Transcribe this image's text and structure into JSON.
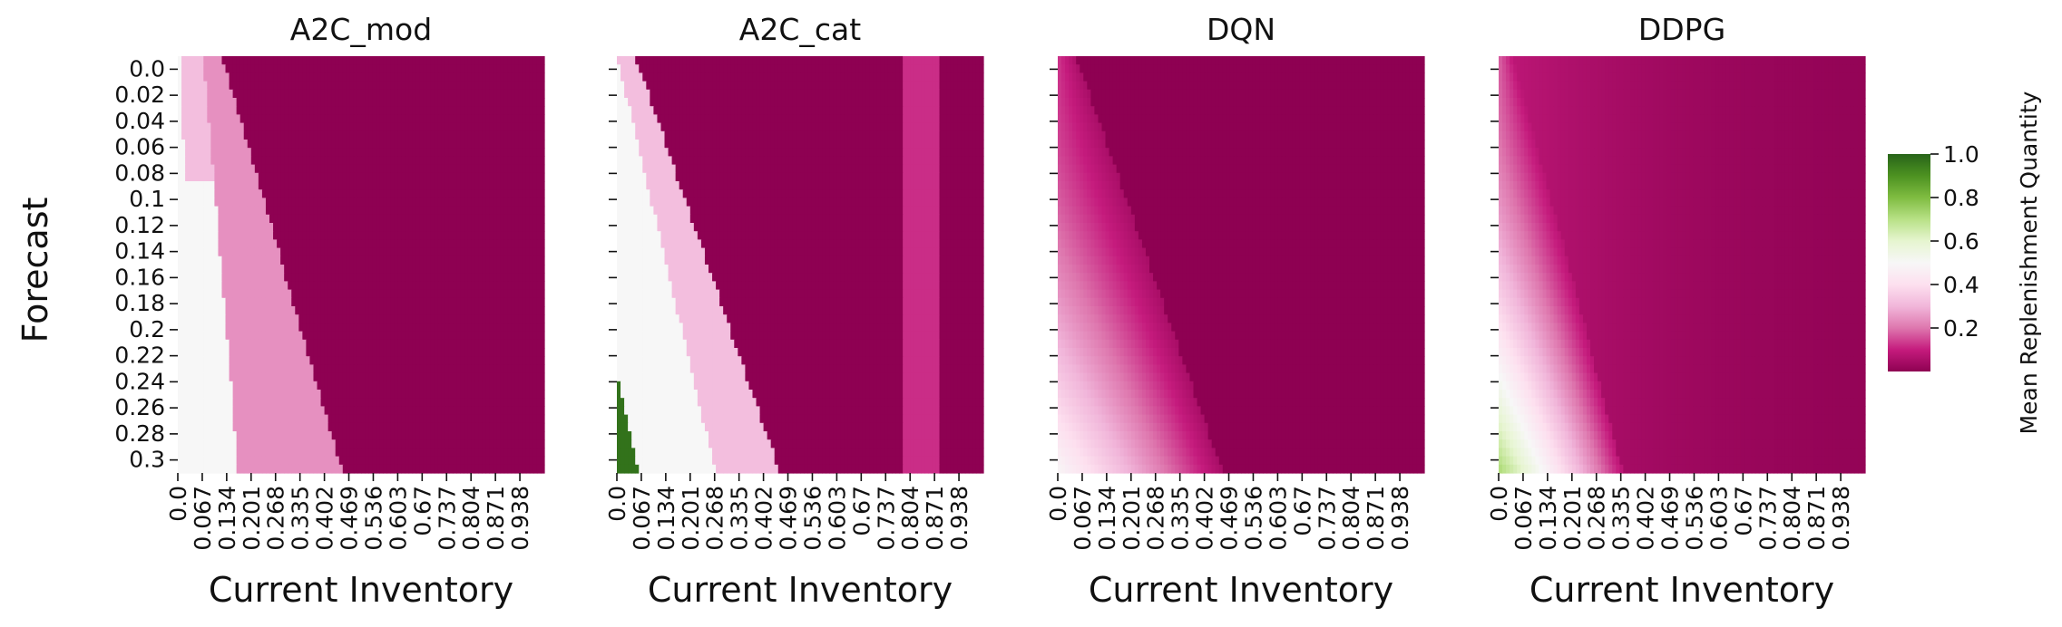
{
  "chart_data": [
    {
      "type": "heatmap",
      "title": "A2C_mod",
      "xlabel": "Current Inventory",
      "ylabel": "Forecast",
      "xticks": [
        "0.0",
        "0.067",
        "0.134",
        "0.201",
        "0.268",
        "0.335",
        "0.402",
        "0.469",
        "0.536",
        "0.603",
        "0.67",
        "0.737",
        "0.804",
        "0.871",
        "0.938"
      ],
      "yticks": [
        "0.0",
        "0.02",
        "0.04",
        "0.06",
        "0.08",
        "0.1",
        "0.12",
        "0.14",
        "0.16",
        "0.18",
        "0.2",
        "0.22",
        "0.24",
        "0.26",
        "0.28",
        "0.3"
      ],
      "x_range": [
        0,
        1
      ],
      "y_range": [
        0,
        0.3
      ],
      "value_range": [
        0,
        1
      ],
      "grid": false
    },
    {
      "type": "heatmap",
      "title": "A2C_cat",
      "xlabel": "Current Inventory",
      "ylabel": "",
      "xticks": [
        "0.0",
        "0.067",
        "0.134",
        "0.201",
        "0.268",
        "0.335",
        "0.402",
        "0.469",
        "0.536",
        "0.603",
        "0.67",
        "0.737",
        "0.804",
        "0.871",
        "0.938"
      ],
      "yticks": [],
      "x_range": [
        0,
        1
      ],
      "y_range": [
        0,
        0.3
      ],
      "value_range": [
        0,
        1
      ],
      "grid": false
    },
    {
      "type": "heatmap",
      "title": "DQN",
      "xlabel": "Current Inventory",
      "ylabel": "",
      "xticks": [
        "0.0",
        "0.067",
        "0.134",
        "0.201",
        "0.268",
        "0.335",
        "0.402",
        "0.469",
        "0.536",
        "0.603",
        "0.67",
        "0.737",
        "0.804",
        "0.871",
        "0.938"
      ],
      "yticks": [],
      "x_range": [
        0,
        1
      ],
      "y_range": [
        0,
        0.3
      ],
      "value_range": [
        0,
        1
      ],
      "grid": false
    },
    {
      "type": "heatmap",
      "title": "DDPG",
      "xlabel": "Current Inventory",
      "ylabel": "",
      "xticks": [
        "0.0",
        "0.067",
        "0.134",
        "0.201",
        "0.268",
        "0.335",
        "0.402",
        "0.469",
        "0.536",
        "0.603",
        "0.67",
        "0.737",
        "0.804",
        "0.871",
        "0.938"
      ],
      "yticks": [],
      "x_range": [
        0,
        1
      ],
      "y_range": [
        0,
        0.3
      ],
      "value_range": [
        0,
        1
      ],
      "grid": false
    }
  ],
  "colorbar": {
    "label": "Mean Replenishment Quantity",
    "ticks": [
      "1.0",
      "0.8",
      "0.6",
      "0.4",
      "0.2"
    ],
    "tick_values": [
      1.0,
      0.8,
      0.6,
      0.4,
      0.2
    ],
    "range": [
      0,
      1
    ],
    "colormap": "PiYG",
    "stops": [
      "#8e0152",
      "#c51b7d",
      "#de77ae",
      "#f1b6da",
      "#fde0ef",
      "#f7f7f7",
      "#e6f5d0",
      "#b8e186",
      "#7fbc41",
      "#4d9221",
      "#276419"
    ]
  }
}
